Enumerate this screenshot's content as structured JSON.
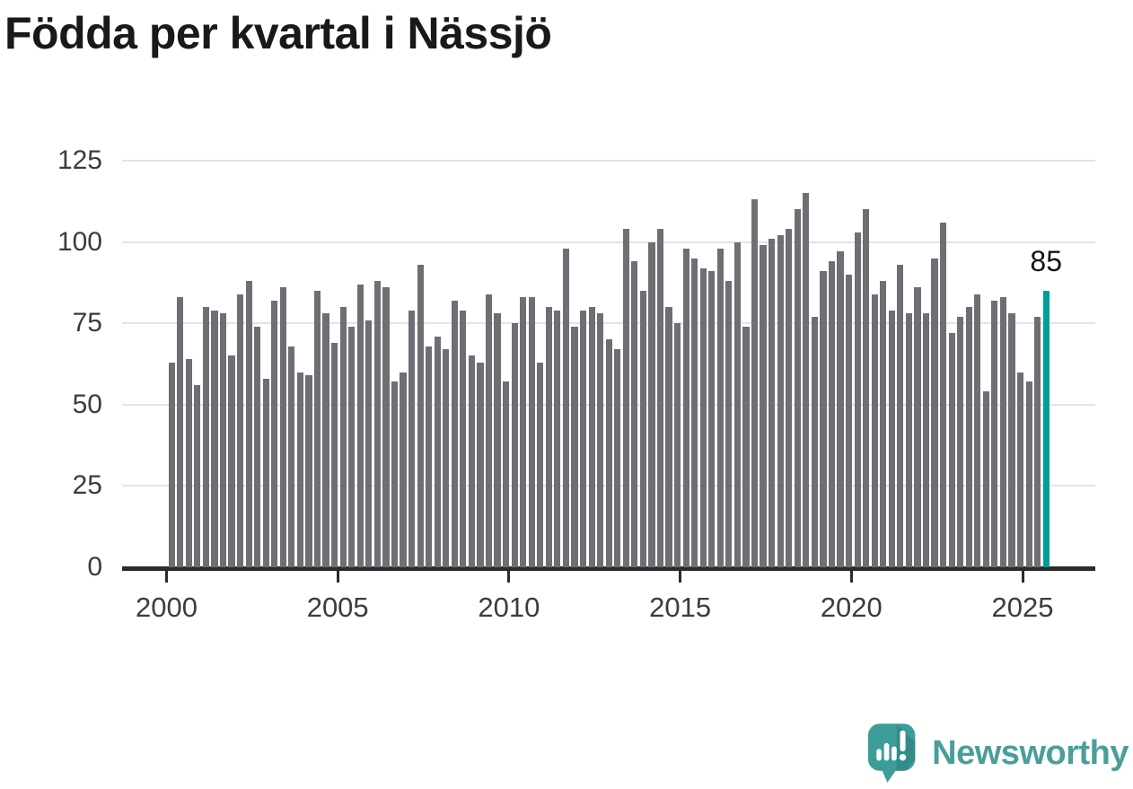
{
  "title": "Födda per kvartal i Nässjö",
  "chart_data": {
    "type": "bar",
    "title": "Födda per kvartal i Nässjö",
    "start_year": 2000,
    "start_quarter": 1,
    "end_quarter_label": "2025 Q3",
    "values": [
      63,
      83,
      64,
      56,
      80,
      79,
      78,
      65,
      84,
      88,
      74,
      58,
      82,
      86,
      68,
      60,
      59,
      85,
      78,
      69,
      80,
      74,
      87,
      76,
      88,
      86,
      57,
      60,
      79,
      93,
      68,
      71,
      67,
      82,
      79,
      65,
      63,
      84,
      78,
      57,
      75,
      83,
      83,
      63,
      80,
      79,
      98,
      74,
      79,
      80,
      78,
      70,
      67,
      104,
      94,
      85,
      100,
      104,
      80,
      75,
      98,
      95,
      92,
      91,
      98,
      88,
      100,
      74,
      113,
      99,
      101,
      102,
      104,
      110,
      115,
      77,
      91,
      94,
      97,
      90,
      103,
      110,
      84,
      88,
      79,
      93,
      78,
      86,
      78,
      95,
      106,
      72,
      77,
      80,
      84,
      54,
      82,
      83,
      78,
      60,
      57,
      77,
      85
    ],
    "highlight": {
      "index": 102,
      "quarter": "2025 Q3",
      "value": 85
    },
    "annotation": {
      "text": "85"
    },
    "xlabel": "",
    "ylabel": "",
    "x_tick_years": [
      2000,
      2005,
      2010,
      2015,
      2020,
      2025
    ],
    "y_ticks": [
      0,
      25,
      50,
      75,
      100,
      125
    ],
    "ylim": [
      0,
      125
    ],
    "grid": "horizontal",
    "colors": {
      "bar": "#6f6e74",
      "highlight": "#009e98",
      "axis": "#2b2b2b",
      "gridline": "#e3e3e3"
    }
  },
  "logo": {
    "text": "Newsworthy",
    "icon": "speech-bubble-bar-chart-exclamation",
    "colors": {
      "bubble": "#3d9d98",
      "bubble_shade": "#35908b",
      "marks": "#ffffff",
      "text": "#4a9e9b"
    }
  }
}
